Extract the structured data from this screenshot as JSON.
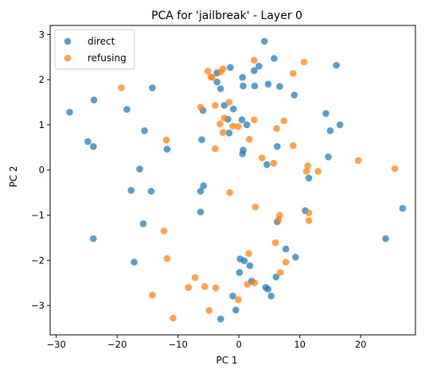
{
  "chart_data": {
    "type": "scatter",
    "title": "PCA for 'jailbreak' - Layer 0",
    "xlabel": "PC 1",
    "ylabel": "PC 2",
    "xlim": [
      -31.0,
      29.0
    ],
    "ylim": [
      -3.65,
      3.2
    ],
    "xticks": [
      -30,
      -20,
      -10,
      0,
      10,
      20
    ],
    "yticks": [
      -3,
      -2,
      -1,
      0,
      1,
      2,
      3
    ],
    "grid": false,
    "legend_position": "top-left",
    "series": [
      {
        "name": "direct",
        "color": "#1f77b4",
        "points": [
          [
            4.2,
            2.85
          ],
          [
            5.8,
            2.47
          ],
          [
            3.3,
            2.3
          ],
          [
            16.0,
            2.32
          ],
          [
            -3.6,
            2.15
          ],
          [
            -1.4,
            2.27
          ],
          [
            0.6,
            2.05
          ],
          [
            2.5,
            2.2
          ],
          [
            -3.6,
            1.95
          ],
          [
            4.8,
            1.9
          ],
          [
            2.6,
            1.86
          ],
          [
            6.7,
            1.85
          ],
          [
            -3.0,
            1.8
          ],
          [
            0.7,
            1.86
          ],
          [
            -14.2,
            1.82
          ],
          [
            9.1,
            1.66
          ],
          [
            -27.8,
            1.28
          ],
          [
            -23.8,
            1.55
          ],
          [
            -18.4,
            1.34
          ],
          [
            -2.4,
            1.43
          ],
          [
            -0.9,
            1.35
          ],
          [
            -5.9,
            1.32
          ],
          [
            14.3,
            1.25
          ],
          [
            -1.8,
            1.12
          ],
          [
            0.5,
            1.11
          ],
          [
            1.3,
            1.0
          ],
          [
            16.6,
            1.0
          ],
          [
            -15.5,
            0.87
          ],
          [
            15.0,
            0.87
          ],
          [
            -1.6,
            0.82
          ],
          [
            -24.8,
            0.63
          ],
          [
            -23.9,
            0.52
          ],
          [
            -6.1,
            0.67
          ],
          [
            6.3,
            0.52
          ],
          [
            -11.8,
            0.46
          ],
          [
            0.7,
            0.44
          ],
          [
            0.6,
            0.36
          ],
          [
            14.7,
            0.29
          ],
          [
            4.6,
            0.12
          ],
          [
            -16.3,
            0.02
          ],
          [
            11.5,
            -0.18
          ],
          [
            -14.4,
            -0.47
          ],
          [
            -17.7,
            -0.45
          ],
          [
            -5.8,
            -0.35
          ],
          [
            -6.3,
            -0.47
          ],
          [
            -6.3,
            -0.93
          ],
          [
            10.9,
            -0.9
          ],
          [
            26.9,
            -0.85
          ],
          [
            -15.7,
            -1.19
          ],
          [
            6.3,
            -1.15
          ],
          [
            24.1,
            -1.52
          ],
          [
            -23.9,
            -1.52
          ],
          [
            7.7,
            -1.75
          ],
          [
            -17.2,
            -2.04
          ],
          [
            9.3,
            -1.93
          ],
          [
            0.2,
            -1.97
          ],
          [
            0.9,
            -2.01
          ],
          [
            1.8,
            -2.12
          ],
          [
            0.1,
            -2.27
          ],
          [
            6.1,
            -2.37
          ],
          [
            2.1,
            -2.46
          ],
          [
            4.4,
            -2.6
          ],
          [
            4.8,
            -2.64
          ],
          [
            5.3,
            -2.79
          ],
          [
            -1.0,
            -2.79
          ],
          [
            -0.5,
            -3.1
          ],
          [
            -3.0,
            -3.3
          ]
        ]
      },
      {
        "name": "refusing",
        "color": "#ff7f0e",
        "points": [
          [
            2.5,
            2.43
          ],
          [
            10.7,
            2.39
          ],
          [
            -5.1,
            2.19
          ],
          [
            -4.6,
            2.06
          ],
          [
            -2.6,
            2.24
          ],
          [
            -3.0,
            2.17
          ],
          [
            -4.4,
            2.05
          ],
          [
            -19.3,
            1.82
          ],
          [
            8.9,
            2.14
          ],
          [
            -6.3,
            1.39
          ],
          [
            -3.9,
            1.43
          ],
          [
            -1.6,
            1.5
          ],
          [
            -2.4,
            1.15
          ],
          [
            -3.1,
            1.02
          ],
          [
            2.5,
            1.11
          ],
          [
            7.4,
            1.09
          ],
          [
            6.2,
            0.92
          ],
          [
            -2.6,
            0.83
          ],
          [
            -1.0,
            0.97
          ],
          [
            -0.1,
            0.96
          ],
          [
            1.7,
            0.68
          ],
          [
            -11.9,
            0.66
          ],
          [
            -3.9,
            0.47
          ],
          [
            8.9,
            0.54
          ],
          [
            3.8,
            0.27
          ],
          [
            5.7,
            0.15
          ],
          [
            11.1,
            -0.03
          ],
          [
            11.3,
            0.09
          ],
          [
            13.0,
            -0.03
          ],
          [
            19.6,
            0.21
          ],
          [
            25.6,
            0.03
          ],
          [
            -1.5,
            -0.5
          ],
          [
            2.7,
            -0.82
          ],
          [
            6.7,
            -1.0
          ],
          [
            11.5,
            -0.95
          ],
          [
            6.5,
            -1.1
          ],
          [
            11.5,
            -1.12
          ],
          [
            -12.3,
            -1.35
          ],
          [
            6.0,
            -1.61
          ],
          [
            1.6,
            -1.85
          ],
          [
            -11.8,
            -1.96
          ],
          [
            7.7,
            -2.04
          ],
          [
            -7.2,
            -2.38
          ],
          [
            -8.3,
            -2.6
          ],
          [
            -5.6,
            -2.58
          ],
          [
            1.4,
            -2.53
          ],
          [
            2.6,
            -2.5
          ],
          [
            6.8,
            -2.27
          ],
          [
            -3.8,
            -2.61
          ],
          [
            -0.1,
            -2.87
          ],
          [
            -14.2,
            -2.77
          ],
          [
            -4.9,
            -3.11
          ],
          [
            -10.8,
            -3.28
          ]
        ]
      }
    ]
  }
}
